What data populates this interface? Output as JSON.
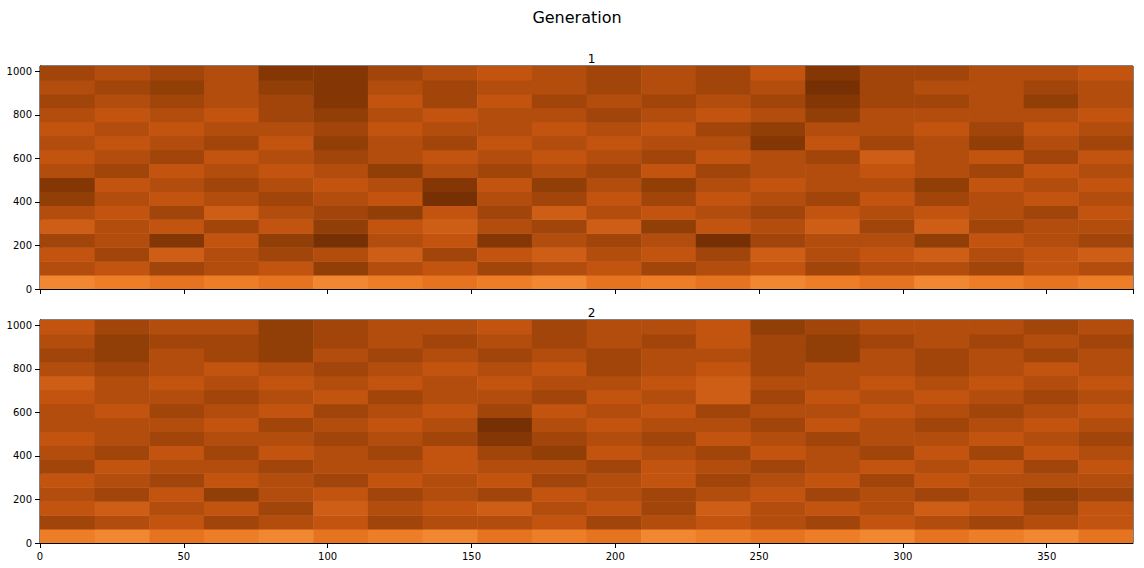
{
  "suptitle": "Generation",
  "chart_data": [
    {
      "type": "heatmap",
      "title": "1",
      "xlim": [
        0,
        380
      ],
      "xticks": [
        0,
        50,
        100,
        150,
        200,
        250,
        300,
        350
      ],
      "ylim": [
        0,
        1024
      ],
      "yticks": [
        0,
        200,
        400,
        600,
        800,
        1000
      ],
      "tick_labels": "y",
      "zlim": [
        0.2,
        0.9
      ],
      "x_edges": [
        0,
        19,
        38,
        57,
        76,
        95,
        114,
        133,
        152,
        171,
        190,
        209,
        228,
        247,
        266,
        285,
        304,
        323,
        342,
        361,
        380
      ],
      "y_edges": [
        0,
        64,
        128,
        192,
        256,
        320,
        384,
        448,
        512,
        576,
        640,
        704,
        768,
        832,
        896,
        960,
        1024
      ],
      "cells": [
        [
          0.8,
          0.75,
          0.7,
          0.75,
          0.7,
          0.8,
          0.75,
          0.7,
          0.75,
          0.8,
          0.7,
          0.75,
          0.7,
          0.8,
          0.75,
          0.7,
          0.8,
          0.75,
          0.7,
          0.75
        ],
        [
          0.5,
          0.55,
          0.45,
          0.5,
          0.55,
          0.4,
          0.5,
          0.55,
          0.45,
          0.5,
          0.55,
          0.45,
          0.5,
          0.55,
          0.45,
          0.5,
          0.5,
          0.45,
          0.55,
          0.5
        ],
        [
          0.55,
          0.45,
          0.6,
          0.5,
          0.45,
          0.5,
          0.6,
          0.45,
          0.55,
          0.6,
          0.5,
          0.55,
          0.45,
          0.6,
          0.5,
          0.55,
          0.6,
          0.5,
          0.55,
          0.6
        ],
        [
          0.45,
          0.5,
          0.35,
          0.55,
          0.4,
          0.3,
          0.5,
          0.55,
          0.35,
          0.5,
          0.45,
          0.5,
          0.3,
          0.45,
          0.5,
          0.5,
          0.4,
          0.55,
          0.5,
          0.45
        ],
        [
          0.6,
          0.5,
          0.55,
          0.45,
          0.55,
          0.4,
          0.55,
          0.6,
          0.5,
          0.45,
          0.6,
          0.4,
          0.55,
          0.5,
          0.6,
          0.45,
          0.6,
          0.45,
          0.5,
          0.5
        ],
        [
          0.5,
          0.55,
          0.45,
          0.6,
          0.5,
          0.45,
          0.4,
          0.55,
          0.45,
          0.6,
          0.5,
          0.55,
          0.5,
          0.45,
          0.55,
          0.5,
          0.55,
          0.5,
          0.45,
          0.55
        ],
        [
          0.4,
          0.5,
          0.55,
          0.5,
          0.45,
          0.5,
          0.55,
          0.3,
          0.5,
          0.45,
          0.55,
          0.45,
          0.55,
          0.5,
          0.45,
          0.55,
          0.45,
          0.5,
          0.55,
          0.5
        ],
        [
          0.35,
          0.55,
          0.5,
          0.45,
          0.5,
          0.55,
          0.5,
          0.35,
          0.55,
          0.4,
          0.5,
          0.4,
          0.5,
          0.55,
          0.5,
          0.5,
          0.4,
          0.55,
          0.5,
          0.55
        ],
        [
          0.5,
          0.45,
          0.55,
          0.5,
          0.55,
          0.5,
          0.4,
          0.5,
          0.45,
          0.5,
          0.45,
          0.55,
          0.45,
          0.5,
          0.5,
          0.55,
          0.5,
          0.45,
          0.55,
          0.5
        ],
        [
          0.55,
          0.5,
          0.45,
          0.55,
          0.5,
          0.45,
          0.5,
          0.55,
          0.5,
          0.55,
          0.5,
          0.45,
          0.55,
          0.5,
          0.45,
          0.6,
          0.5,
          0.55,
          0.45,
          0.55
        ],
        [
          0.5,
          0.55,
          0.5,
          0.45,
          0.55,
          0.4,
          0.5,
          0.45,
          0.55,
          0.5,
          0.55,
          0.5,
          0.5,
          0.35,
          0.55,
          0.45,
          0.5,
          0.4,
          0.5,
          0.45
        ],
        [
          0.55,
          0.5,
          0.55,
          0.5,
          0.5,
          0.45,
          0.55,
          0.5,
          0.5,
          0.55,
          0.5,
          0.55,
          0.45,
          0.4,
          0.5,
          0.5,
          0.55,
          0.45,
          0.55,
          0.5
        ],
        [
          0.5,
          0.55,
          0.5,
          0.55,
          0.45,
          0.4,
          0.5,
          0.55,
          0.5,
          0.5,
          0.45,
          0.5,
          0.55,
          0.5,
          0.4,
          0.5,
          0.5,
          0.5,
          0.5,
          0.55
        ],
        [
          0.45,
          0.5,
          0.45,
          0.5,
          0.45,
          0.35,
          0.55,
          0.45,
          0.55,
          0.45,
          0.5,
          0.45,
          0.5,
          0.45,
          0.35,
          0.45,
          0.45,
          0.5,
          0.4,
          0.5
        ],
        [
          0.5,
          0.45,
          0.4,
          0.5,
          0.4,
          0.35,
          0.5,
          0.45,
          0.5,
          0.5,
          0.45,
          0.5,
          0.45,
          0.5,
          0.3,
          0.45,
          0.5,
          0.5,
          0.45,
          0.5
        ],
        [
          0.45,
          0.5,
          0.45,
          0.5,
          0.35,
          0.35,
          0.45,
          0.5,
          0.55,
          0.5,
          0.45,
          0.5,
          0.45,
          0.55,
          0.35,
          0.45,
          0.45,
          0.5,
          0.5,
          0.55
        ]
      ]
    },
    {
      "type": "heatmap",
      "title": "2",
      "xlim": [
        0,
        380
      ],
      "xticks": [
        0,
        50,
        100,
        150,
        200,
        250,
        300,
        350
      ],
      "ylim": [
        0,
        1024
      ],
      "yticks": [
        0,
        200,
        400,
        600,
        800,
        1000
      ],
      "zlim": [
        0.2,
        0.9
      ],
      "x_edges": [
        0,
        19,
        38,
        57,
        76,
        95,
        114,
        133,
        152,
        171,
        190,
        209,
        228,
        247,
        266,
        285,
        304,
        323,
        342,
        361,
        380
      ],
      "y_edges": [
        0,
        64,
        128,
        192,
        256,
        320,
        384,
        448,
        512,
        576,
        640,
        704,
        768,
        832,
        896,
        960,
        1024
      ],
      "cells": [
        [
          0.75,
          0.8,
          0.7,
          0.75,
          0.8,
          0.7,
          0.75,
          0.8,
          0.7,
          0.75,
          0.7,
          0.8,
          0.75,
          0.7,
          0.75,
          0.8,
          0.7,
          0.75,
          0.8,
          0.7
        ],
        [
          0.45,
          0.5,
          0.55,
          0.45,
          0.5,
          0.55,
          0.45,
          0.5,
          0.5,
          0.55,
          0.45,
          0.5,
          0.55,
          0.5,
          0.45,
          0.55,
          0.5,
          0.45,
          0.5,
          0.55
        ],
        [
          0.55,
          0.6,
          0.5,
          0.55,
          0.45,
          0.6,
          0.5,
          0.55,
          0.6,
          0.5,
          0.55,
          0.45,
          0.6,
          0.5,
          0.55,
          0.5,
          0.6,
          0.55,
          0.45,
          0.55
        ],
        [
          0.5,
          0.45,
          0.55,
          0.4,
          0.5,
          0.55,
          0.45,
          0.5,
          0.45,
          0.55,
          0.5,
          0.45,
          0.5,
          0.55,
          0.45,
          0.5,
          0.45,
          0.5,
          0.4,
          0.45
        ],
        [
          0.55,
          0.5,
          0.45,
          0.55,
          0.5,
          0.45,
          0.55,
          0.5,
          0.55,
          0.45,
          0.5,
          0.55,
          0.45,
          0.5,
          0.55,
          0.45,
          0.55,
          0.5,
          0.5,
          0.5
        ],
        [
          0.45,
          0.55,
          0.5,
          0.5,
          0.45,
          0.5,
          0.5,
          0.55,
          0.5,
          0.5,
          0.45,
          0.55,
          0.5,
          0.45,
          0.5,
          0.55,
          0.5,
          0.55,
          0.45,
          0.55
        ],
        [
          0.5,
          0.45,
          0.55,
          0.45,
          0.55,
          0.5,
          0.45,
          0.55,
          0.45,
          0.4,
          0.55,
          0.5,
          0.45,
          0.55,
          0.5,
          0.45,
          0.55,
          0.45,
          0.55,
          0.5
        ],
        [
          0.55,
          0.5,
          0.45,
          0.5,
          0.5,
          0.45,
          0.5,
          0.45,
          0.35,
          0.45,
          0.5,
          0.45,
          0.55,
          0.5,
          0.45,
          0.5,
          0.5,
          0.55,
          0.5,
          0.45
        ],
        [
          0.5,
          0.5,
          0.5,
          0.55,
          0.45,
          0.5,
          0.55,
          0.5,
          0.3,
          0.5,
          0.55,
          0.5,
          0.5,
          0.45,
          0.55,
          0.5,
          0.45,
          0.5,
          0.55,
          0.5
        ],
        [
          0.5,
          0.55,
          0.45,
          0.5,
          0.55,
          0.45,
          0.5,
          0.55,
          0.45,
          0.55,
          0.5,
          0.55,
          0.45,
          0.5,
          0.5,
          0.55,
          0.5,
          0.45,
          0.5,
          0.55
        ],
        [
          0.55,
          0.5,
          0.5,
          0.45,
          0.5,
          0.55,
          0.45,
          0.5,
          0.5,
          0.45,
          0.55,
          0.5,
          0.6,
          0.45,
          0.55,
          0.5,
          0.55,
          0.5,
          0.45,
          0.5
        ],
        [
          0.6,
          0.5,
          0.55,
          0.5,
          0.55,
          0.5,
          0.55,
          0.5,
          0.55,
          0.5,
          0.5,
          0.55,
          0.6,
          0.5,
          0.5,
          0.55,
          0.5,
          0.55,
          0.5,
          0.55
        ],
        [
          0.5,
          0.45,
          0.5,
          0.55,
          0.5,
          0.45,
          0.5,
          0.55,
          0.5,
          0.55,
          0.45,
          0.5,
          0.55,
          0.45,
          0.5,
          0.5,
          0.45,
          0.5,
          0.55,
          0.5
        ],
        [
          0.45,
          0.4,
          0.5,
          0.45,
          0.4,
          0.5,
          0.45,
          0.5,
          0.45,
          0.5,
          0.45,
          0.5,
          0.5,
          0.45,
          0.4,
          0.5,
          0.45,
          0.5,
          0.45,
          0.5
        ],
        [
          0.5,
          0.4,
          0.45,
          0.45,
          0.4,
          0.45,
          0.5,
          0.45,
          0.5,
          0.45,
          0.5,
          0.45,
          0.55,
          0.45,
          0.4,
          0.45,
          0.5,
          0.45,
          0.5,
          0.45
        ],
        [
          0.55,
          0.45,
          0.5,
          0.5,
          0.4,
          0.45,
          0.5,
          0.5,
          0.55,
          0.45,
          0.5,
          0.5,
          0.55,
          0.4,
          0.45,
          0.5,
          0.5,
          0.5,
          0.45,
          0.5
        ]
      ]
    }
  ]
}
